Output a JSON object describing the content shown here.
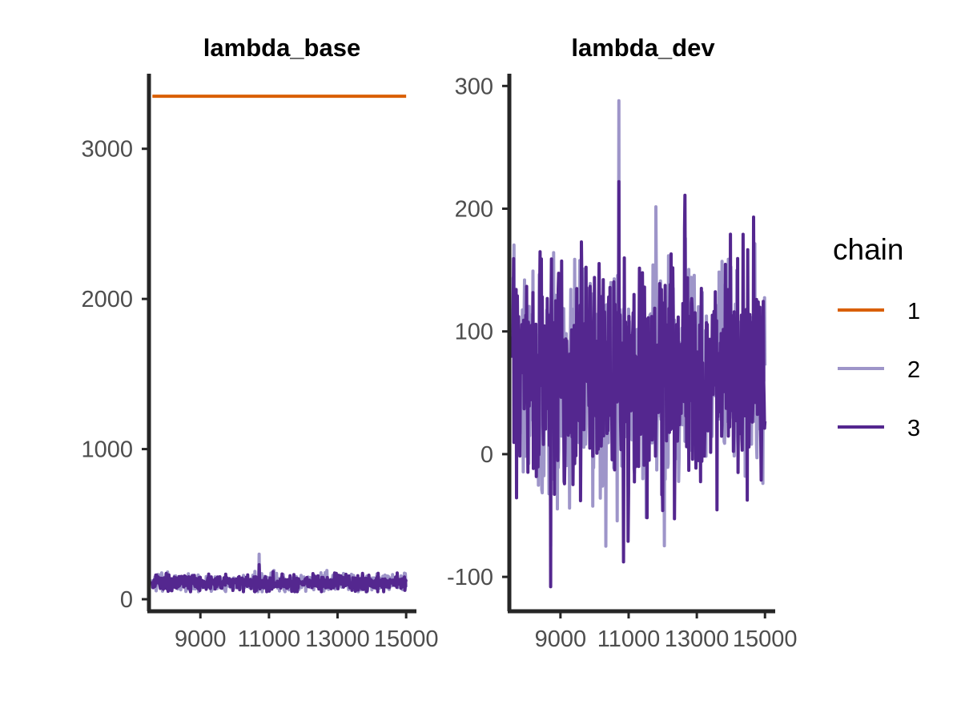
{
  "chart_data": {
    "type": "line",
    "legend": {
      "title": "chain",
      "placement": "right",
      "entries": [
        {
          "label": "1",
          "color": "#d95f02"
        },
        {
          "label": "2",
          "color": "#9e95c9"
        },
        {
          "label": "3",
          "color": "#54278f"
        }
      ]
    },
    "grid": false,
    "panels": [
      {
        "title": "lambda_base",
        "xlim": [
          7500,
          15300
        ],
        "ylim": [
          -80,
          3500
        ],
        "x_ticks": [
          9000,
          11000,
          13000,
          15000
        ],
        "x_tick_labels": [
          "9000",
          "11000",
          "13000",
          "15000"
        ],
        "y_ticks": [
          0,
          1000,
          2000,
          3000
        ],
        "y_tick_labels": [
          "0",
          "1000",
          "2000",
          "3000"
        ],
        "x_range": [
          7600,
          15000
        ],
        "series": [
          {
            "label": "1",
            "constant": 3350
          },
          {
            "label": "2",
            "center": 110,
            "sd": 28,
            "min": 50,
            "max": 300
          },
          {
            "label": "3",
            "center": 110,
            "sd": 28,
            "min": 50,
            "max": 230
          }
        ]
      },
      {
        "title": "lambda_dev",
        "xlim": [
          7500,
          15300
        ],
        "ylim": [
          -128,
          310
        ],
        "x_ticks": [
          9000,
          11000,
          13000,
          15000
        ],
        "x_tick_labels": [
          "9000",
          "11000",
          "13000",
          "15000"
        ],
        "y_ticks": [
          -100,
          0,
          100,
          200,
          300
        ],
        "y_tick_labels": [
          "-100",
          "0",
          "100",
          "200",
          "300"
        ],
        "x_range": [
          7600,
          15000
        ],
        "series": [
          {
            "label": "2",
            "center": 65,
            "sd": 45,
            "min": -75,
            "max": 288
          },
          {
            "label": "3",
            "center": 65,
            "sd": 45,
            "min": -108,
            "max": 222
          }
        ]
      }
    ]
  }
}
